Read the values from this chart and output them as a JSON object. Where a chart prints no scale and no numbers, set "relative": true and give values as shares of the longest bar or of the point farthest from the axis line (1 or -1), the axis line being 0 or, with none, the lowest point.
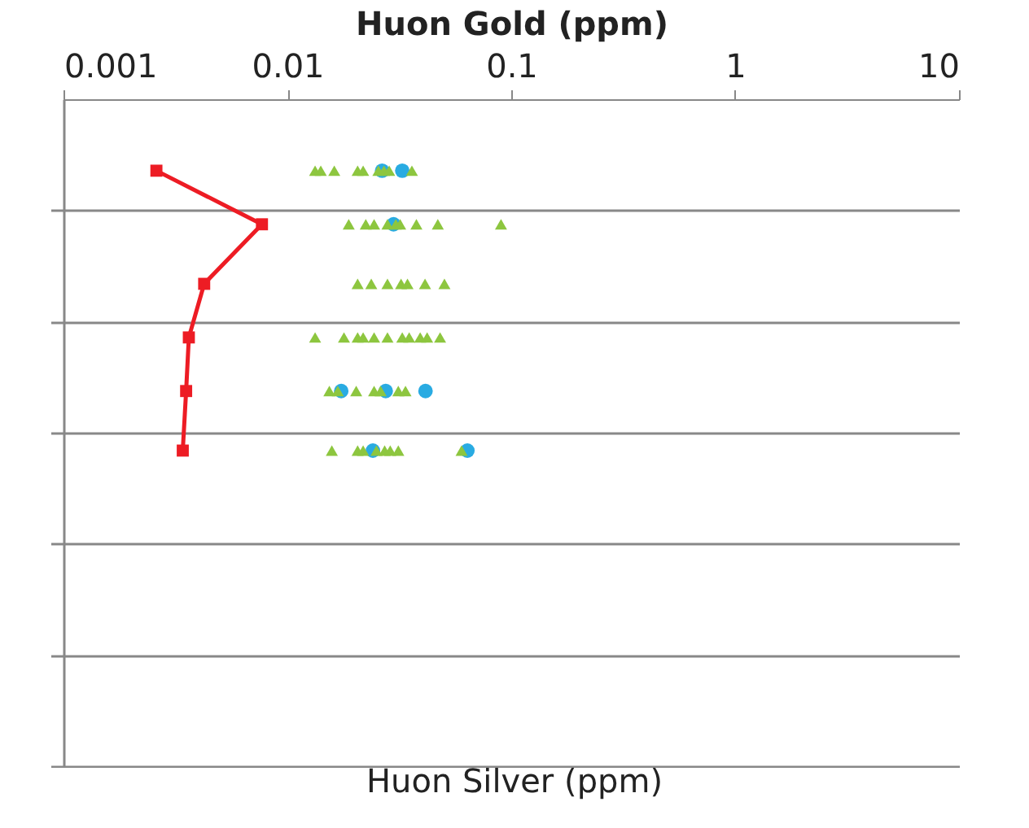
{
  "chart_data": {
    "type": "scatter",
    "xlabel": "Huon Gold (ppm)",
    "annotations": [
      "Huon Silver (ppm)"
    ],
    "log": "x",
    "xlim": [
      0.001,
      10
    ],
    "xticks": [
      0.001,
      0.01,
      0.1,
      1,
      10
    ],
    "relative": true,
    "tick_labels": "x",
    "grid": "y",
    "series": [
      {
        "marker": "circle",
        "color": "#29abe2",
        "x": [
          0.0265,
          0.0326,
          0.0298,
          0.0174,
          0.0275,
          0.0414,
          0.0241,
          0.0637
        ],
        "values": [
          1,
          1,
          0.91,
          0.63,
          0.63,
          0.63,
          0.53,
          0.53
        ]
      },
      {
        "marker": "triangle",
        "color": "#8dc63f",
        "x": [
          0.0133,
          0.0141,
          0.0162,
          0.0206,
          0.0218,
          0.0255,
          0.027,
          0.0285,
          0.036,
          0.0188,
          0.0224,
          0.0244,
          0.028,
          0.0305,
          0.0319,
          0.0377,
          0.047,
          0.09,
          0.0206,
          0.0237,
          0.028,
          0.0322,
          0.0344,
          0.0412,
          0.0503,
          0.0133,
          0.0179,
          0.0206,
          0.0218,
          0.0244,
          0.028,
          0.0326,
          0.035,
          0.0392,
          0.0421,
          0.0481,
          0.0154,
          0.0168,
          0.0203,
          0.0244,
          0.0261,
          0.0313,
          0.0337,
          0.0158,
          0.0206,
          0.0218,
          0.025,
          0.0272,
          0.0288,
          0.0313,
          0.06
        ],
        "values": [
          1,
          1,
          1,
          1,
          1,
          1,
          1,
          1,
          1,
          0.91,
          0.91,
          0.91,
          0.91,
          0.91,
          0.91,
          0.91,
          0.91,
          0.91,
          0.81,
          0.81,
          0.81,
          0.81,
          0.81,
          0.81,
          0.81,
          0.72,
          0.72,
          0.72,
          0.72,
          0.72,
          0.72,
          0.72,
          0.72,
          0.72,
          0.72,
          0.72,
          0.63,
          0.63,
          0.63,
          0.63,
          0.63,
          0.63,
          0.63,
          0.53,
          0.53,
          0.53,
          0.53,
          0.53,
          0.53,
          0.53,
          0.53
        ]
      },
      {
        "type": "line",
        "marker": "square",
        "line_style": "solid",
        "color": "#ed1c24",
        "x": [
          0.0026,
          0.0077,
          0.00425,
          0.00363,
          0.00353,
          0.00341
        ],
        "values": [
          1,
          0.91,
          0.81,
          0.72,
          0.63,
          0.53
        ]
      }
    ]
  }
}
